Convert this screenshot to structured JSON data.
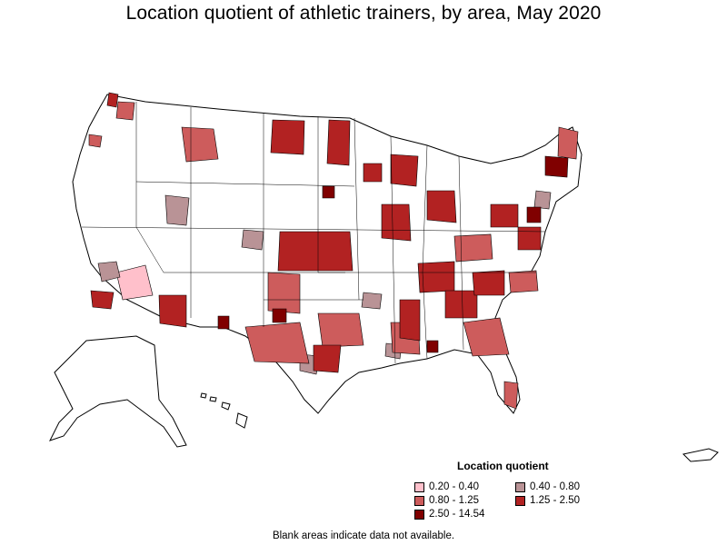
{
  "title": "Location quotient of athletic trainers, by area, May 2020",
  "legend": {
    "title": "Location quotient",
    "items": [
      {
        "label": "0.20 - 0.40",
        "color": "#ffc0cb"
      },
      {
        "label": "0.40 - 0.80",
        "color": "#b99396"
      },
      {
        "label": "0.80 - 1.25",
        "color": "#cd5c5c"
      },
      {
        "label": "1.25 - 2.50",
        "color": "#b22222"
      },
      {
        "label": "2.50 - 14.54",
        "color": "#800000"
      }
    ]
  },
  "note": "Blank areas indicate data not available."
}
